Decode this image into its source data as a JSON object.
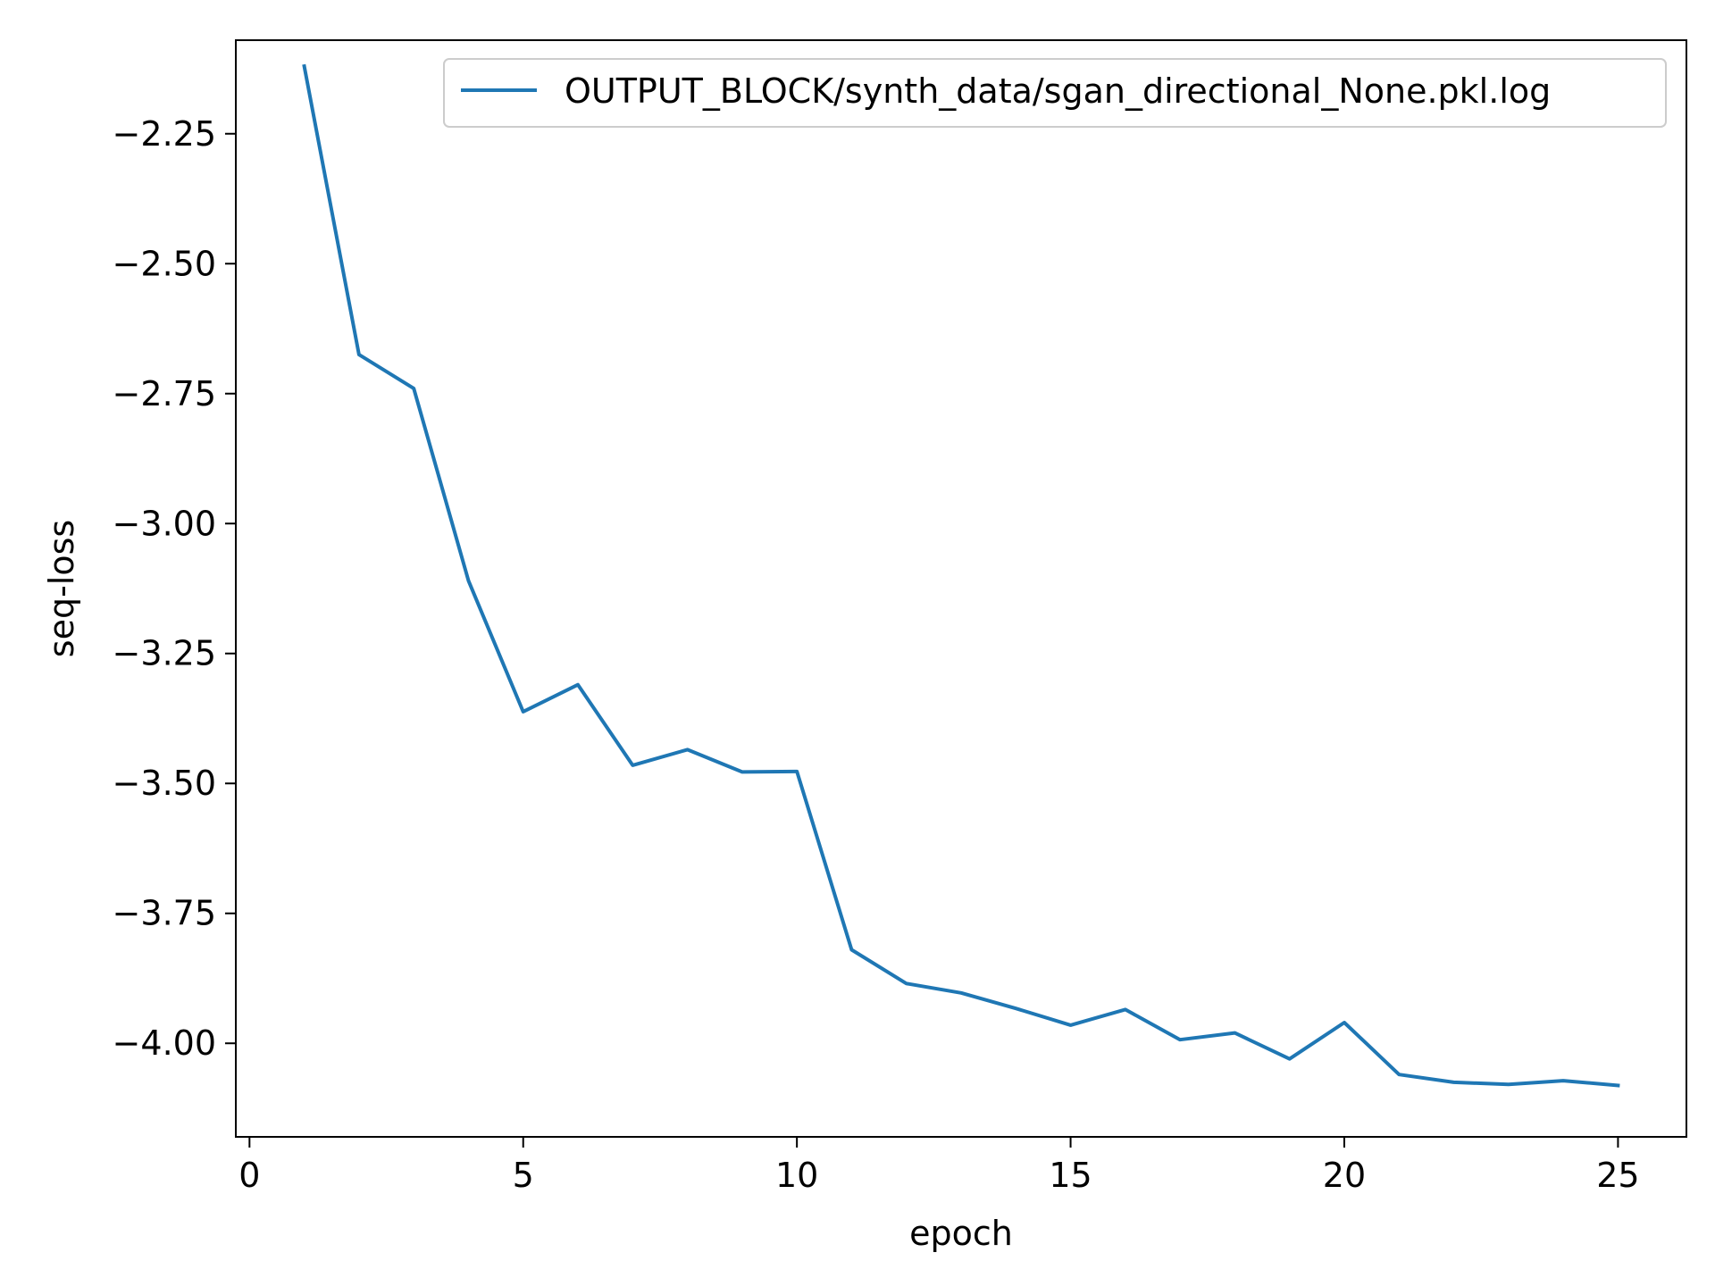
{
  "chart_data": {
    "type": "line",
    "title": "",
    "xlabel": "epoch",
    "ylabel": "seq-loss",
    "xlim": [
      -0.25,
      26.25
    ],
    "ylim": [
      -4.18,
      -2.07
    ],
    "x_ticks": [
      0,
      5,
      10,
      15,
      20,
      25
    ],
    "x_tick_labels": [
      "0",
      "5",
      "10",
      "15",
      "20",
      "25"
    ],
    "y_ticks": [
      -2.25,
      -2.5,
      -2.75,
      -3.0,
      -3.25,
      -3.5,
      -3.75,
      -4.0
    ],
    "y_tick_labels": [
      "−2.25",
      "−2.50",
      "−2.75",
      "−3.00",
      "−3.25",
      "−3.50",
      "−3.75",
      "−4.00"
    ],
    "grid": false,
    "legend_position": "top-right",
    "series": [
      {
        "name": "OUTPUT_BLOCK/synth_data/sgan_directional_None.pkl.log",
        "color": "#1f77b4",
        "x": [
          1,
          2,
          3,
          4,
          5,
          6,
          7,
          8,
          9,
          10,
          11,
          12,
          13,
          14,
          15,
          16,
          17,
          18,
          19,
          20,
          21,
          22,
          23,
          24,
          25
        ],
        "y": [
          -2.12,
          -2.675,
          -2.74,
          -3.11,
          -3.362,
          -3.31,
          -3.465,
          -3.435,
          -3.478,
          -3.477,
          -3.82,
          -3.885,
          -3.903,
          -3.933,
          -3.965,
          -3.935,
          -3.993,
          -3.98,
          -4.03,
          -3.96,
          -4.06,
          -4.075,
          -4.079,
          -4.072,
          -4.081
        ]
      }
    ]
  }
}
